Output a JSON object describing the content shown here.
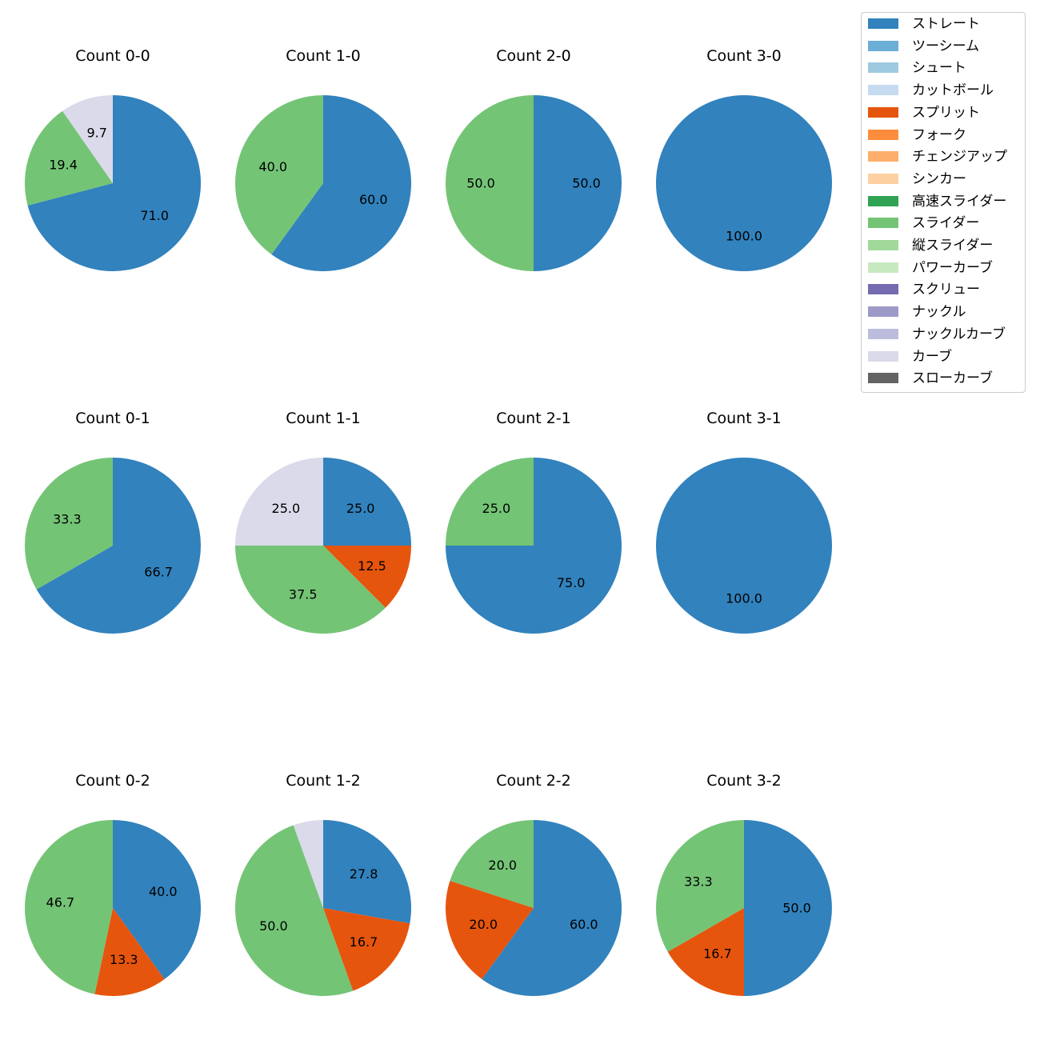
{
  "chart_data": {
    "type": "pie",
    "legend": {
      "position": "top-right",
      "entries": [
        {
          "name": "ストレート",
          "color": "#3182bd"
        },
        {
          "name": "ツーシーム",
          "color": "#6baed6"
        },
        {
          "name": "シュート",
          "color": "#9ecae1"
        },
        {
          "name": "カットボール",
          "color": "#c6dbef"
        },
        {
          "name": "スプリット",
          "color": "#e6550d"
        },
        {
          "name": "フォーク",
          "color": "#fd8d3c"
        },
        {
          "name": "チェンジアップ",
          "color": "#fdae6b"
        },
        {
          "name": "シンカー",
          "color": "#fdd0a2"
        },
        {
          "name": "高速スライダー",
          "color": "#31a354"
        },
        {
          "name": "スライダー",
          "color": "#74c476"
        },
        {
          "name": "縦スライダー",
          "color": "#a1d99b"
        },
        {
          "name": "パワーカーブ",
          "color": "#c7e9c0"
        },
        {
          "name": "スクリュー",
          "color": "#756bb1"
        },
        {
          "name": "ナックル",
          "color": "#9e9ac8"
        },
        {
          "name": "ナックルカーブ",
          "color": "#bcbddc"
        },
        {
          "name": "カーブ",
          "color": "#dadaeb"
        },
        {
          "name": "スローカーブ",
          "color": "#636363"
        }
      ]
    },
    "charts": [
      {
        "title": "Count 0-0",
        "slices": [
          {
            "pitch": "ストレート",
            "value": 71.0,
            "label": "71.0"
          },
          {
            "pitch": "スライダー",
            "value": 19.4,
            "label": "19.4"
          },
          {
            "pitch": "カーブ",
            "value": 9.7,
            "label": "9.7"
          }
        ]
      },
      {
        "title": "Count 1-0",
        "slices": [
          {
            "pitch": "ストレート",
            "value": 60.0,
            "label": "60.0"
          },
          {
            "pitch": "スライダー",
            "value": 40.0,
            "label": "40.0"
          }
        ]
      },
      {
        "title": "Count 2-0",
        "slices": [
          {
            "pitch": "ストレート",
            "value": 50.0,
            "label": "50.0"
          },
          {
            "pitch": "スライダー",
            "value": 50.0,
            "label": "50.0"
          }
        ]
      },
      {
        "title": "Count 3-0",
        "slices": [
          {
            "pitch": "ストレート",
            "value": 100.0,
            "label": "100.0"
          }
        ]
      },
      {
        "title": "Count 0-1",
        "slices": [
          {
            "pitch": "ストレート",
            "value": 66.7,
            "label": "66.7"
          },
          {
            "pitch": "スライダー",
            "value": 33.3,
            "label": "33.3"
          }
        ]
      },
      {
        "title": "Count 1-1",
        "slices": [
          {
            "pitch": "ストレート",
            "value": 25.0,
            "label": "25.0"
          },
          {
            "pitch": "スプリット",
            "value": 12.5,
            "label": "12.5"
          },
          {
            "pitch": "スライダー",
            "value": 37.5,
            "label": "37.5"
          },
          {
            "pitch": "カーブ",
            "value": 25.0,
            "label": "25.0"
          }
        ]
      },
      {
        "title": "Count 2-1",
        "slices": [
          {
            "pitch": "ストレート",
            "value": 75.0,
            "label": "75.0"
          },
          {
            "pitch": "スライダー",
            "value": 25.0,
            "label": "25.0"
          }
        ]
      },
      {
        "title": "Count 3-1",
        "slices": [
          {
            "pitch": "ストレート",
            "value": 100.0,
            "label": "100.0"
          }
        ]
      },
      {
        "title": "Count 0-2",
        "slices": [
          {
            "pitch": "ストレート",
            "value": 40.0,
            "label": "40.0"
          },
          {
            "pitch": "スプリット",
            "value": 13.3,
            "label": "13.3"
          },
          {
            "pitch": "スライダー",
            "value": 46.7,
            "label": "46.7"
          }
        ]
      },
      {
        "title": "Count 1-2",
        "slices": [
          {
            "pitch": "ストレート",
            "value": 27.8,
            "label": "27.8"
          },
          {
            "pitch": "スプリット",
            "value": 16.7,
            "label": "16.7"
          },
          {
            "pitch": "スライダー",
            "value": 50.0,
            "label": "50.0"
          },
          {
            "pitch": "カーブ",
            "value": 5.5,
            "label": ""
          }
        ]
      },
      {
        "title": "Count 2-2",
        "slices": [
          {
            "pitch": "ストレート",
            "value": 60.0,
            "label": "60.0"
          },
          {
            "pitch": "スプリット",
            "value": 20.0,
            "label": "20.0"
          },
          {
            "pitch": "スライダー",
            "value": 20.0,
            "label": "20.0"
          }
        ]
      },
      {
        "title": "Count 3-2",
        "slices": [
          {
            "pitch": "ストレート",
            "value": 50.0,
            "label": "50.0"
          },
          {
            "pitch": "スプリット",
            "value": 16.7,
            "label": "16.7"
          },
          {
            "pitch": "スライダー",
            "value": 33.3,
            "label": "33.3"
          }
        ]
      }
    ]
  }
}
